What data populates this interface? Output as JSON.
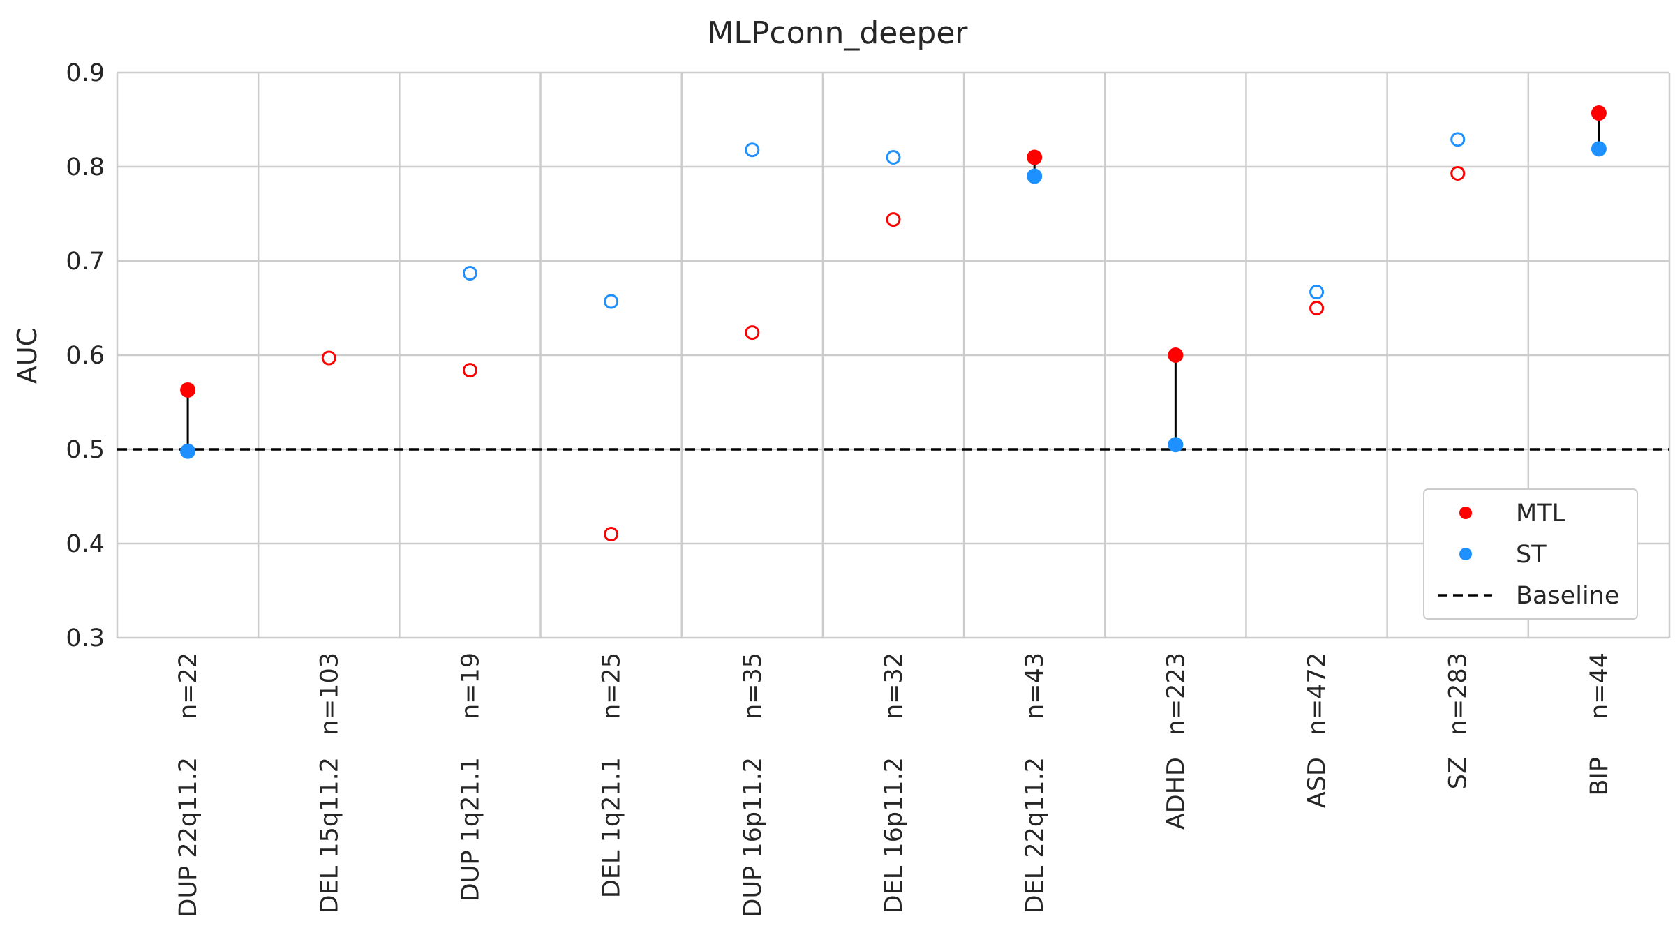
{
  "chart_data": {
    "type": "scatter",
    "title": "MLPconn_deeper",
    "xlabel": "",
    "ylabel": "AUC",
    "ylim": [
      0.3,
      0.9
    ],
    "yticks": [
      "0.3",
      "0.4",
      "0.5",
      "0.6",
      "0.7",
      "0.8",
      "0.9"
    ],
    "grid": true,
    "legend_position": "lower-right",
    "categories": [
      "DUP 22q11.2",
      "DEL 15q11.2",
      "DUP 1q21.1",
      "DEL 1q21.1",
      "DUP 16p11.2",
      "DEL 16p11.2",
      "DEL 22q11.2",
      "ADHD",
      "ASD",
      "SZ",
      "BIP"
    ],
    "sample_sizes": [
      "n=22",
      "n=103",
      "n=19",
      "n=25",
      "n=35",
      "n=32",
      "n=43",
      "n=223",
      "n=472",
      "n=283",
      "n=44"
    ],
    "series": [
      {
        "name": "MTL",
        "color": "#ff0000",
        "values": [
          0.563,
          0.597,
          0.584,
          0.41,
          0.624,
          0.744,
          0.81,
          0.6,
          0.65,
          0.793,
          0.857
        ]
      },
      {
        "name": "ST",
        "color": "#1e90ff",
        "values": [
          0.498,
          null,
          0.687,
          0.657,
          0.818,
          0.81,
          0.79,
          0.505,
          0.667,
          0.829,
          0.819
        ]
      }
    ],
    "filled": [
      true,
      false,
      false,
      false,
      false,
      false,
      true,
      true,
      false,
      false,
      true
    ],
    "baseline": {
      "name": "Baseline",
      "value": 0.5,
      "style": "dashed",
      "color": "#000000"
    }
  }
}
